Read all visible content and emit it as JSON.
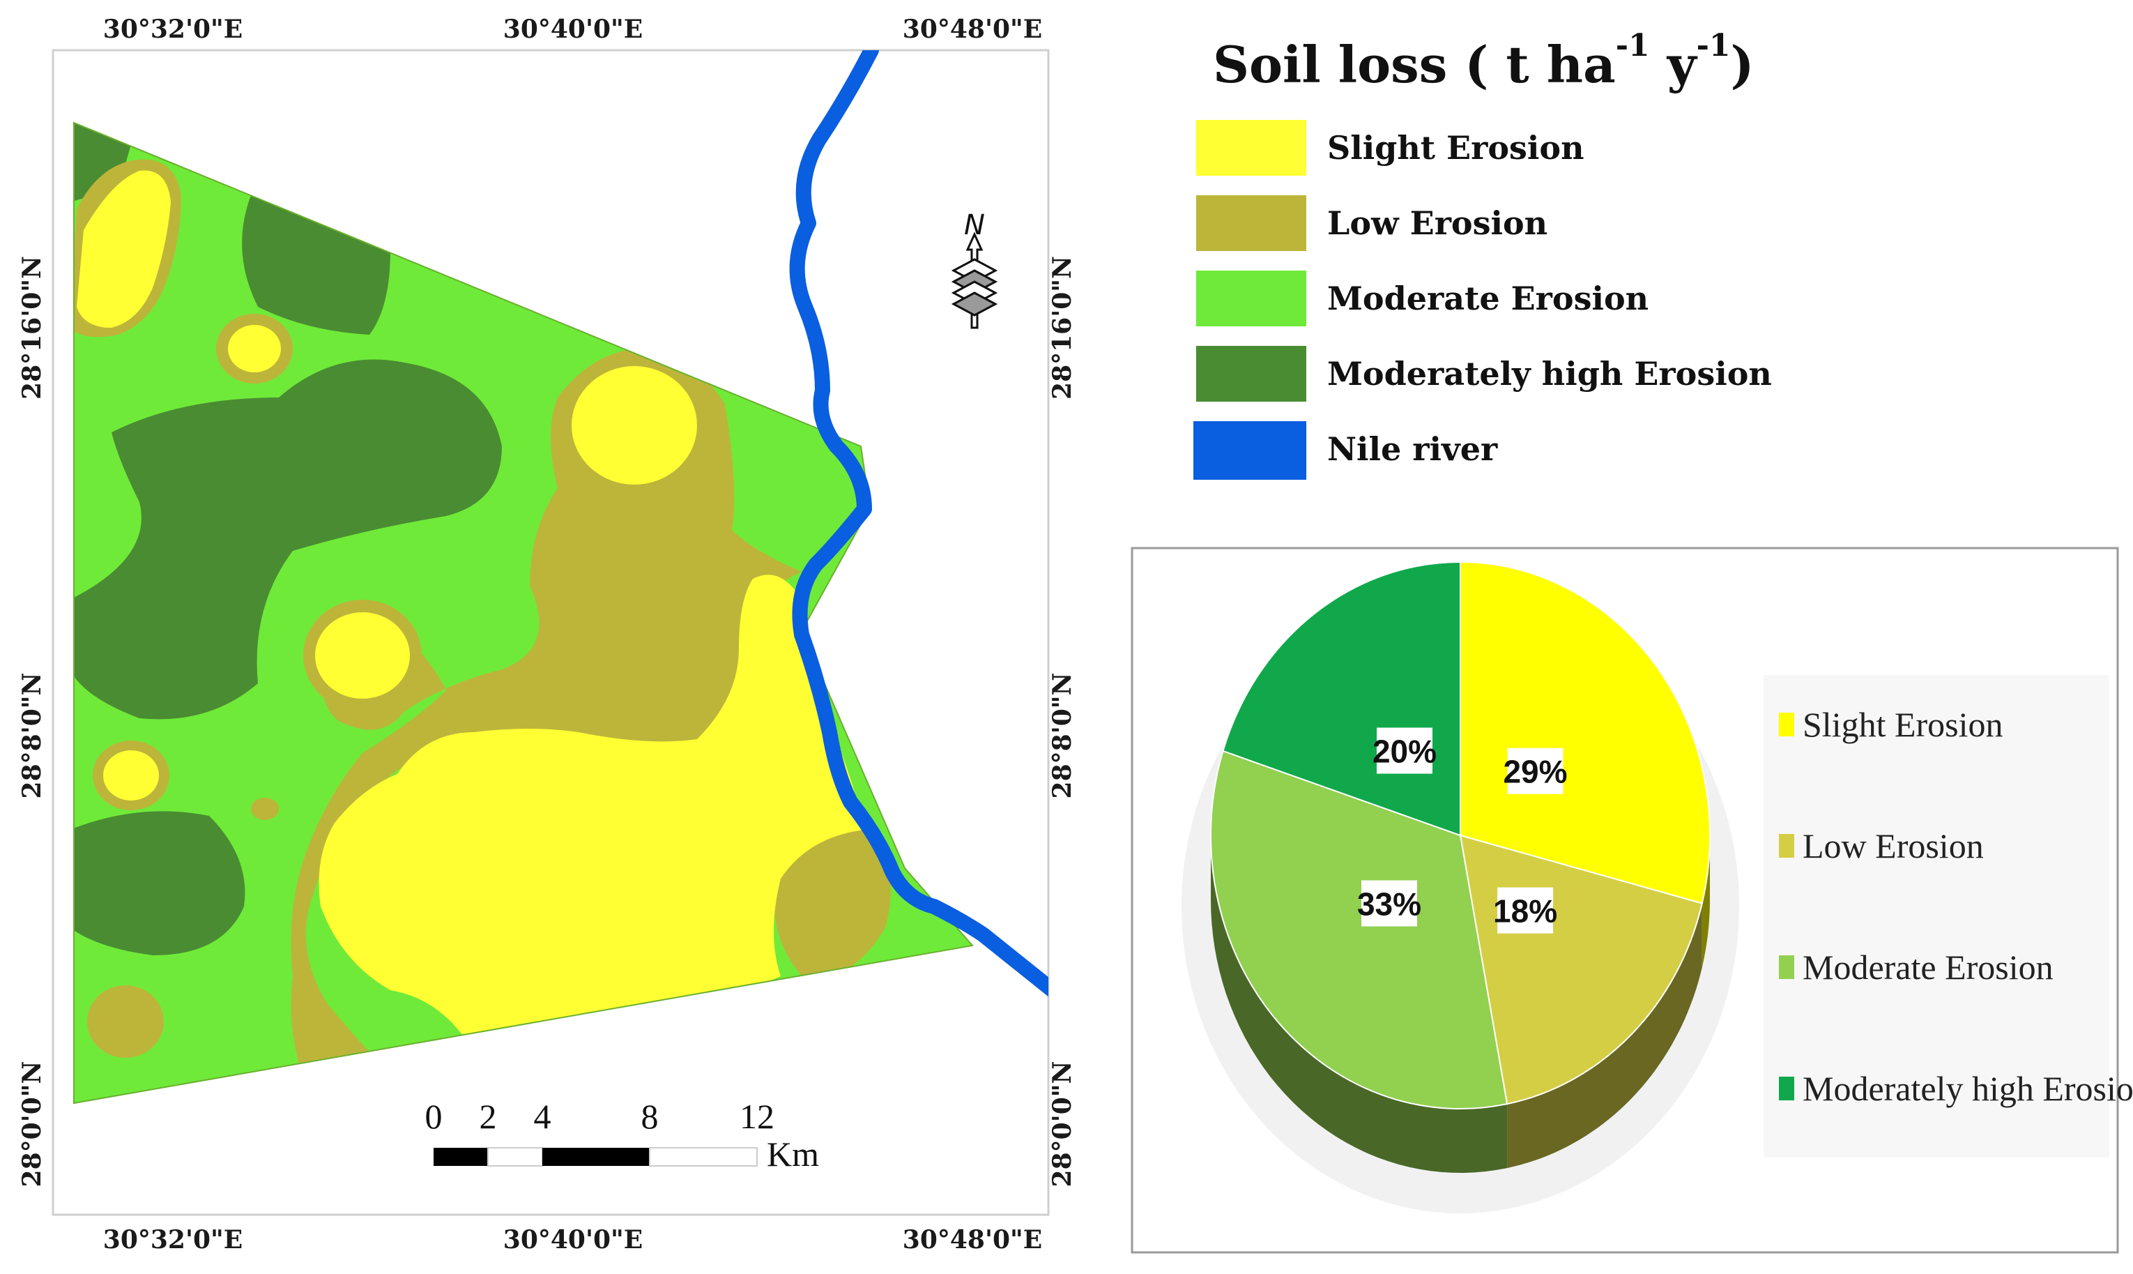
{
  "map": {
    "top_ticks": [
      "30°32'0\"E",
      "30°40'0\"E",
      "30°48'0\"E"
    ],
    "bottom_ticks": [
      "30°32'0\"E",
      "30°40'0\"E",
      "30°48'0\"E"
    ],
    "left_ticks": [
      "28°16'0\"N",
      "28°8'0\"N",
      "28°0'0\"N"
    ],
    "right_ticks": [
      "28°16'0\"N",
      "28°8'0\"N",
      "28°0'0\"N"
    ],
    "north_label": "N",
    "scale_labels": [
      "0",
      "2",
      "4",
      "8",
      "12"
    ],
    "scale_unit": "Km"
  },
  "legend": {
    "title": "Soil loss ( t ha",
    "title_sup1": "-1",
    "title_mid": " y",
    "title_sup2": "-1",
    "title_end": ")",
    "items": [
      {
        "label": "Slight Erosion",
        "color": "#ffff33"
      },
      {
        "label": "Low Erosion",
        "color": "#bdb53a"
      },
      {
        "label": "Moderate Erosion",
        "color": "#6fea39"
      },
      {
        "label": "Moderately high Erosion",
        "color": "#4a8c32"
      },
      {
        "label": "Nile river",
        "color": "#0a5ee0"
      }
    ]
  },
  "colors": {
    "slight": "#ffff33",
    "low": "#bdb53a",
    "moderate": "#6fea39",
    "moderately_high": "#4a8c32",
    "river": "#0a5ee0"
  },
  "chart_data": {
    "type": "pie",
    "categories": [
      "Slight Erosion",
      "Low Erosion",
      "Moderate Erosion",
      "Moderately high Erosion"
    ],
    "values": [
      29,
      18,
      33,
      20
    ],
    "labels": [
      "29%",
      "18%",
      "33%",
      "20%"
    ],
    "colors": [
      "#ffff00",
      "#d4ce45",
      "#92d050",
      "#10a84b"
    ],
    "legend": [
      "Slight Erosion",
      "Low Erosion",
      "Moderate Erosion",
      "Moderately high Erosion"
    ],
    "legend_position": "right"
  }
}
